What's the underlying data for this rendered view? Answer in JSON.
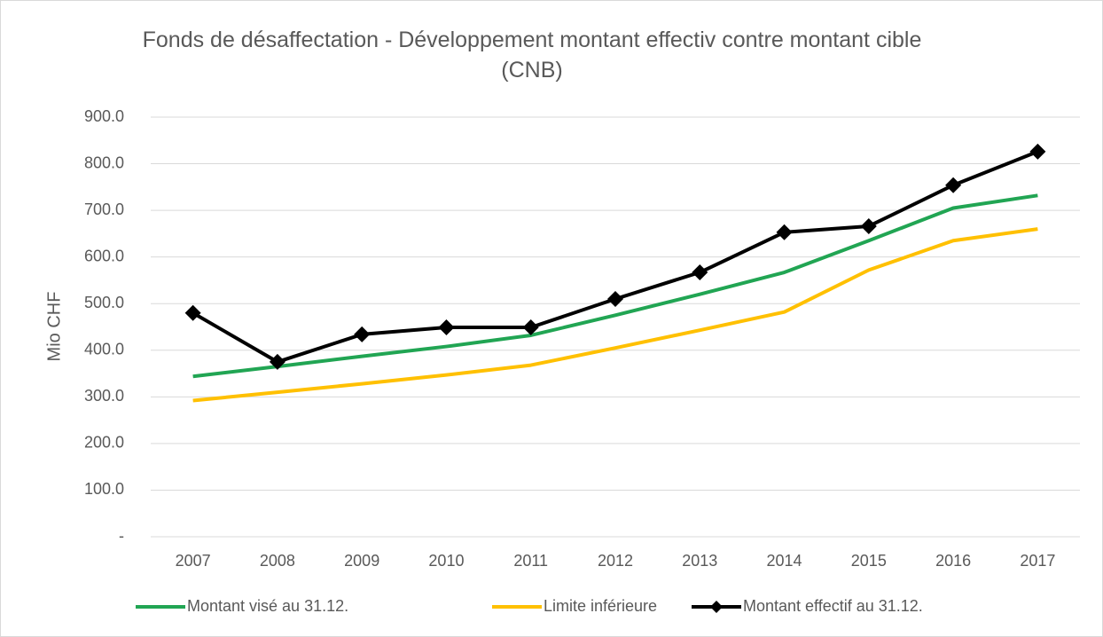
{
  "chart_data": {
    "type": "line",
    "title": "Fonds de désaffectation - Développement montant effectiv contre montant cible (CNB)",
    "y_label": "Mio CHF",
    "categories": [
      "2007",
      "2008",
      "2009",
      "2010",
      "2011",
      "2012",
      "2013",
      "2014",
      "2015",
      "2016",
      "2017"
    ],
    "series": [
      {
        "name": "Montant visé au 31.12.",
        "color": "#21a553",
        "marker": false,
        "values": [
          344,
          365,
          387,
          408,
          432,
          475,
          520,
          567,
          635,
          705,
          732
        ]
      },
      {
        "name": "Limite inférieure",
        "color": "#ffc000",
        "marker": false,
        "values": [
          292,
          310,
          328,
          347,
          368,
          405,
          443,
          482,
          572,
          635,
          660
        ]
      },
      {
        "name": "Montant effectif au 31.12.",
        "color": "#000000",
        "marker": true,
        "values": [
          480,
          375,
          434,
          449,
          449,
          510,
          567,
          653,
          666,
          754,
          826
        ]
      }
    ],
    "ylim": [
      0,
      900
    ],
    "yticks": [
      {
        "value": 0,
        "label": "-"
      },
      {
        "value": 100,
        "label": "100.0"
      },
      {
        "value": 200,
        "label": "200.0"
      },
      {
        "value": 300,
        "label": "300.0"
      },
      {
        "value": 400,
        "label": "400.0"
      },
      {
        "value": 500,
        "label": "500.0"
      },
      {
        "value": 600,
        "label": "600.0"
      },
      {
        "value": 700,
        "label": "700.0"
      },
      {
        "value": 800,
        "label": "800.0"
      },
      {
        "value": 900,
        "label": "900.0"
      }
    ],
    "grid": true,
    "legend": "bottom"
  }
}
